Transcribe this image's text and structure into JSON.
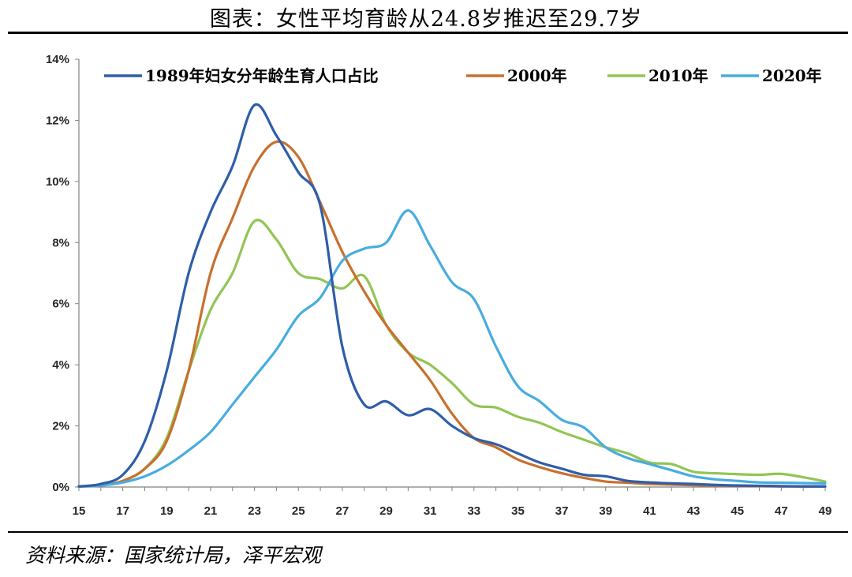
{
  "title": "图表：女性平均育龄从24.8岁推迟至29.7岁",
  "source": "资料来源：国家统计局，泽平宏观",
  "chart_data": {
    "type": "line",
    "title": "图表：女性平均育龄从24.8岁推迟至29.7岁",
    "xlabel": "",
    "ylabel": "",
    "xlim": [
      15,
      49
    ],
    "ylim": [
      0,
      14
    ],
    "x_ticks": [
      "15",
      "17",
      "19",
      "21",
      "23",
      "25",
      "27",
      "29",
      "31",
      "33",
      "35",
      "37",
      "39",
      "41",
      "43",
      "45",
      "47",
      "49"
    ],
    "y_ticks": [
      "0%",
      "2%",
      "4%",
      "6%",
      "8%",
      "10%",
      "12%",
      "14%"
    ],
    "grid": false,
    "legend_position": "top",
    "x": [
      15,
      16,
      17,
      18,
      19,
      20,
      21,
      22,
      23,
      24,
      25,
      26,
      27,
      28,
      29,
      30,
      31,
      32,
      33,
      34,
      35,
      36,
      37,
      38,
      39,
      40,
      41,
      42,
      43,
      44,
      45,
      46,
      47,
      48,
      49
    ],
    "series": [
      {
        "name": "1989年妇女分年龄生育人口占比",
        "color": "#2E5EA8",
        "values": [
          0.02,
          0.1,
          0.4,
          1.5,
          3.8,
          7.0,
          9.0,
          10.5,
          12.5,
          11.5,
          10.3,
          9.2,
          4.6,
          2.7,
          2.8,
          2.35,
          2.55,
          2.0,
          1.6,
          1.4,
          1.1,
          0.8,
          0.6,
          0.4,
          0.35,
          0.2,
          0.15,
          0.12,
          0.1,
          0.07,
          0.05,
          0.04,
          0.03,
          0.02,
          0.02
        ]
      },
      {
        "name": "2000年",
        "color": "#C8702E",
        "values": [
          0.02,
          0.05,
          0.2,
          0.6,
          1.5,
          3.8,
          7.0,
          8.8,
          10.5,
          11.3,
          10.8,
          9.3,
          7.7,
          6.4,
          5.3,
          4.4,
          3.5,
          2.4,
          1.6,
          1.3,
          0.9,
          0.65,
          0.45,
          0.3,
          0.18,
          0.14,
          0.1,
          0.08,
          0.06,
          0.05,
          0.04,
          0.03,
          0.02,
          0.02,
          0.02
        ]
      },
      {
        "name": "2010年",
        "color": "#92C554",
        "values": [
          0.02,
          0.05,
          0.2,
          0.6,
          1.6,
          3.8,
          5.8,
          7.0,
          8.7,
          8.1,
          7.0,
          6.8,
          6.5,
          6.9,
          5.3,
          4.4,
          4.0,
          3.4,
          2.7,
          2.6,
          2.3,
          2.1,
          1.8,
          1.55,
          1.3,
          1.1,
          0.8,
          0.75,
          0.5,
          0.45,
          0.42,
          0.4,
          0.43,
          0.32,
          0.18
        ]
      },
      {
        "name": "2020年",
        "color": "#48ACDF",
        "values": [
          0.02,
          0.05,
          0.15,
          0.35,
          0.7,
          1.2,
          1.8,
          2.7,
          3.6,
          4.5,
          5.6,
          6.2,
          7.4,
          7.8,
          8.0,
          9.05,
          7.9,
          6.7,
          6.15,
          4.6,
          3.3,
          2.8,
          2.2,
          1.95,
          1.3,
          0.95,
          0.75,
          0.55,
          0.35,
          0.25,
          0.2,
          0.15,
          0.14,
          0.13,
          0.12
        ]
      }
    ]
  }
}
